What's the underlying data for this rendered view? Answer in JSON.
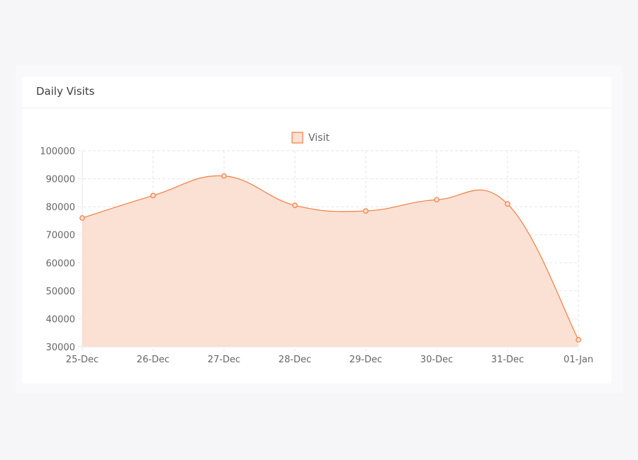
{
  "card": {
    "title": "Daily Visits"
  },
  "colors": {
    "line": "#ef7f43",
    "fill": "#fbe0d4",
    "grid": "#e6e6e6",
    "axis_text": "#666666"
  },
  "chart_data": {
    "type": "area",
    "categories": [
      "25-Dec",
      "26-Dec",
      "27-Dec",
      "28-Dec",
      "29-Dec",
      "30-Dec",
      "31-Dec",
      "01-Jan"
    ],
    "series": [
      {
        "name": "Visit",
        "values": [
          76000,
          84000,
          91000,
          80500,
          78500,
          82500,
          81000,
          32500
        ]
      }
    ],
    "ylim": [
      30000,
      100000
    ],
    "yticks": [
      "100000",
      "90000",
      "80000",
      "70000",
      "60000",
      "50000",
      "40000",
      "30000"
    ],
    "grid": true,
    "legend_position": "top-center"
  }
}
